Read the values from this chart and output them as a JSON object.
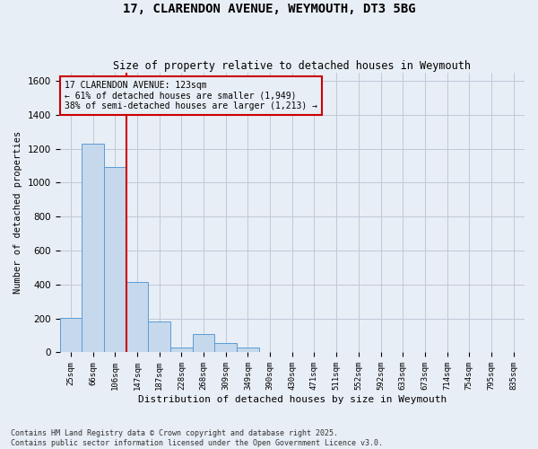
{
  "title": "17, CLARENDON AVENUE, WEYMOUTH, DT3 5BG",
  "subtitle": "Size of property relative to detached houses in Weymouth",
  "xlabel": "Distribution of detached houses by size in Weymouth",
  "ylabel": "Number of detached properties",
  "categories": [
    "25sqm",
    "66sqm",
    "106sqm",
    "147sqm",
    "187sqm",
    "228sqm",
    "268sqm",
    "309sqm",
    "349sqm",
    "390sqm",
    "430sqm",
    "471sqm",
    "511sqm",
    "552sqm",
    "592sqm",
    "633sqm",
    "673sqm",
    "714sqm",
    "754sqm",
    "795sqm",
    "835sqm"
  ],
  "values": [
    205,
    1230,
    1090,
    415,
    180,
    30,
    110,
    55,
    30,
    0,
    0,
    0,
    0,
    0,
    0,
    0,
    0,
    0,
    0,
    0,
    0
  ],
  "bar_color": "#c5d8ec",
  "bar_edge_color": "#5b9bd5",
  "grid_color": "#c0c8d8",
  "bg_color": "#e8eef5",
  "vline_x": 2.5,
  "vline_color": "#cc0000",
  "annotation_text": "17 CLARENDON AVENUE: 123sqm\n← 61% of detached houses are smaller (1,949)\n38% of semi-detached houses are larger (1,213) →",
  "annotation_box_color": "#cc0000",
  "ylim": [
    0,
    1650
  ],
  "yticks": [
    0,
    200,
    400,
    600,
    800,
    1000,
    1200,
    1400,
    1600
  ],
  "footnote1": "Contains HM Land Registry data © Crown copyright and database right 2025.",
  "footnote2": "Contains public sector information licensed under the Open Government Licence v3.0."
}
